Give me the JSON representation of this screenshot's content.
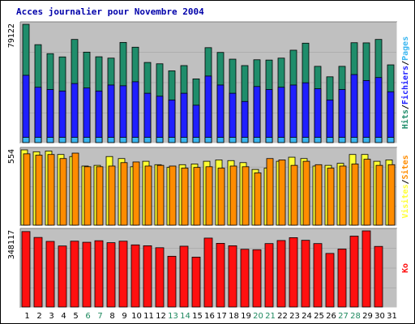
{
  "chart_data": {
    "type": "bar",
    "title": "Acces journalier pour Novembre 2004",
    "categories": [
      "1",
      "2",
      "3",
      "4",
      "5",
      "6",
      "7",
      "8",
      "9",
      "10",
      "11",
      "12",
      "13",
      "14",
      "15",
      "16",
      "17",
      "18",
      "19",
      "20",
      "21",
      "22",
      "23",
      "24",
      "25",
      "26",
      "27",
      "28",
      "29",
      "30",
      "31"
    ],
    "weekend_days": [
      "6",
      "7",
      "13",
      "14",
      "20",
      "21",
      "27",
      "28"
    ],
    "colors": {
      "hits": "#1f8d6b",
      "files": "#1f1fff",
      "pages": "#3ab6f0",
      "visits": "#ffff33",
      "sites": "#ff8c00",
      "kb": "#ff1010",
      "panel_bg": "#c0c0c0",
      "title": "#0000aa",
      "weekday_label": "#000000",
      "weekend_label": "#208a60"
    },
    "panels": [
      {
        "max_label": "79122",
        "ylim": [
          0,
          79122
        ],
        "legend": [
          {
            "text": "Hits",
            "color": "#1f8d6b"
          },
          {
            "text": "/",
            "color": "#000000"
          },
          {
            "text": "Fichiers",
            "color": "#1f1fff"
          },
          {
            "text": "/",
            "color": "#000000"
          },
          {
            "text": "Pages",
            "color": "#3ab6f0"
          }
        ],
        "series": [
          {
            "name": "Hits",
            "values": [
              79122,
              65500,
              59500,
              57300,
              69000,
              60500,
              57400,
              56500,
              67000,
              63800,
              53600,
              52700,
              48000,
              51500,
              42600,
              63500,
              60300,
              55800,
              51500,
              55400,
              55200,
              56500,
              61800,
              66500,
              51000,
              44000,
              51000,
              66800,
              66700,
              69000,
              52000
            ]
          },
          {
            "name": "Fichiers",
            "values": [
              45000,
              37000,
              35500,
              34500,
              39500,
              36500,
              34500,
              38500,
              38000,
              40700,
              33000,
              31000,
              28500,
              33000,
              25000,
              44500,
              38500,
              33000,
              27500,
              37500,
              35500,
              37000,
              38500,
              40000,
              36000,
              28500,
              35500,
              45500,
              41500,
              43500,
              34000
            ]
          },
          {
            "name": "Pages",
            "values": [
              3500,
              3500,
              3500,
              3500,
              3500,
              3500,
              3500,
              3500,
              3500,
              3500,
              3500,
              3500,
              3500,
              3500,
              3500,
              3500,
              3500,
              3500,
              3500,
              3500,
              3500,
              3500,
              3500,
              3500,
              3500,
              3500,
              3500,
              3500,
              3500,
              3500,
              3500
            ]
          }
        ]
      },
      {
        "max_label": "554",
        "ylim": [
          0,
          554
        ],
        "legend": [
          {
            "text": "Visites",
            "color": "#ffff33"
          },
          {
            "text": "/",
            "color": "#000000"
          },
          {
            "text": "Sites",
            "color": "#ff8c00"
          }
        ],
        "series": [
          {
            "name": "Visites",
            "values": [
              554,
              540,
              545,
              520,
              505,
              435,
              440,
              505,
              490,
              430,
              470,
              445,
              425,
              445,
              450,
              470,
              480,
              475,
              460,
              410,
              420,
              470,
              500,
              490,
              435,
              440,
              455,
              520,
              520,
              470,
              480
            ]
          },
          {
            "name": "Sites",
            "values": [
              525,
              515,
              520,
              490,
              530,
              430,
              430,
              435,
              460,
              465,
              435,
              440,
              435,
              420,
              425,
              430,
              420,
              435,
              430,
              385,
              490,
              480,
              440,
              470,
              445,
              420,
              435,
              450,
              485,
              440,
              445
            ]
          }
        ]
      },
      {
        "max_label": "348117",
        "ylim": [
          0,
          348117
        ],
        "legend": [
          {
            "text": "Ko",
            "color": "#ff1010"
          }
        ],
        "series": [
          {
            "name": "Ko",
            "values": [
              345000,
              318000,
              300000,
              279000,
              301000,
              296000,
              303000,
              294000,
              301000,
              284000,
              280000,
              271000,
              232000,
              278000,
              228000,
              315000,
              291000,
              280000,
              264000,
              262000,
              290000,
              304000,
              317000,
              305000,
              290000,
              245000,
              265000,
              324000,
              348117,
              277000,
              0
            ]
          }
        ]
      }
    ]
  }
}
